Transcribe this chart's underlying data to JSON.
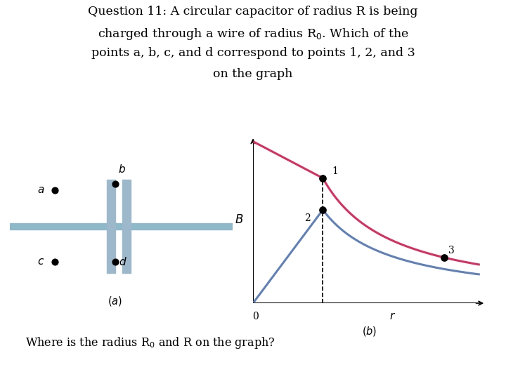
{
  "title_lines": [
    "Question 11: A circular capacitor of radius R is being",
    "charged through a wire of radius R$_0$. Which of the",
    "points a, b, c, and d correspond to points 1, 2, and 3",
    "on the graph"
  ],
  "bottom_text": "Where is the radius R$_0$ and R on the graph?",
  "wire_color": "#8fb8c8",
  "plate_color": "#9cb8ca",
  "line_pink_color": "#d63060",
  "line_blue_color": "#6080b8",
  "bg_color": "#ffffff"
}
